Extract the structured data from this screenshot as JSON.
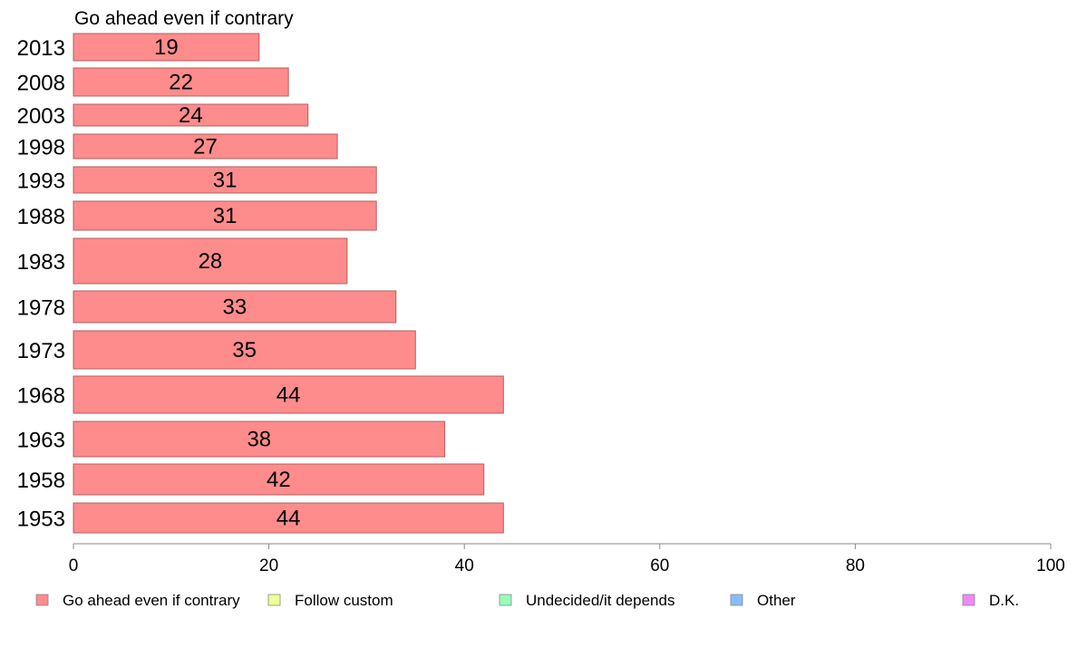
{
  "chart_data": {
    "type": "bar",
    "orientation": "horizontal",
    "series_title": "Go ahead even if contrary",
    "categories": [
      "2013",
      "2008",
      "2003",
      "1998",
      "1993",
      "1988",
      "1983",
      "1978",
      "1973",
      "1968",
      "1963",
      "1958",
      "1953"
    ],
    "values": [
      19,
      22,
      24,
      27,
      31,
      31,
      28,
      33,
      35,
      44,
      38,
      42,
      44
    ],
    "value_labels": [
      "19",
      "22",
      "24",
      "27",
      "31",
      "31",
      "28",
      "33",
      "35",
      "44",
      "38",
      "42",
      "44"
    ],
    "xlim": [
      0,
      100
    ],
    "xticks": [
      0,
      20,
      40,
      60,
      80,
      100
    ],
    "grid": false,
    "legend_position": "bottom",
    "legend": [
      {
        "label": "Go ahead even if contrary",
        "color": "#ff8c8c"
      },
      {
        "label": "Follow custom",
        "color": "#eeff99"
      },
      {
        "label": "Undecided/it depends",
        "color": "#99ffbb"
      },
      {
        "label": "Other",
        "color": "#88bbff"
      },
      {
        "label": "D.K.",
        "color": "#ee88ff"
      }
    ],
    "bar_color": "#ff8c8c",
    "bar_edge_color": "#b06060"
  }
}
